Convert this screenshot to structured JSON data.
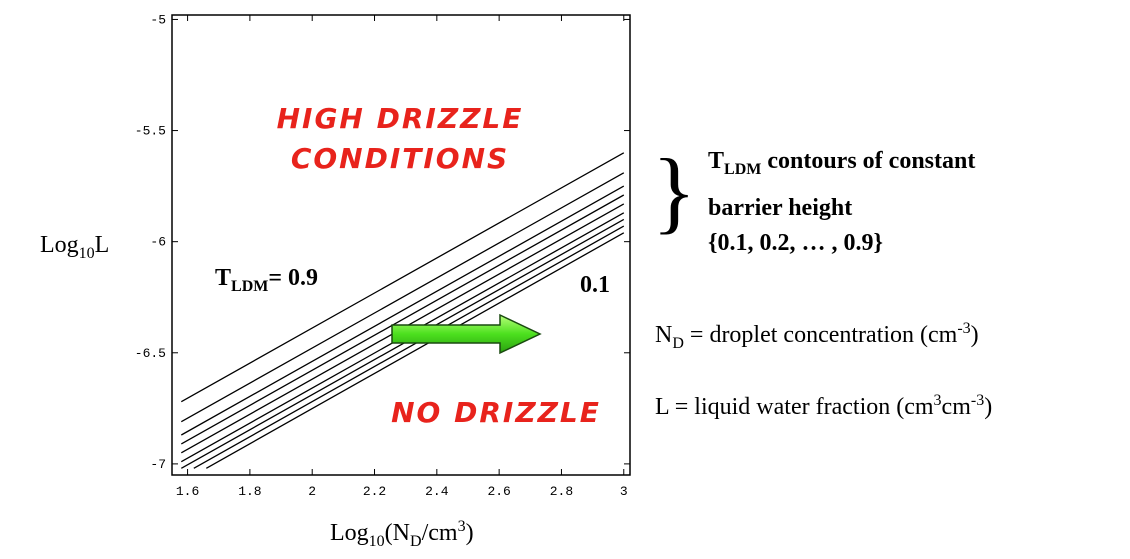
{
  "chart_data": {
    "type": "line",
    "xlabel": [
      "Log",
      "10",
      "(N",
      "D",
      "/cm",
      "3",
      ")"
    ],
    "ylabel": [
      "Log",
      "10",
      "L"
    ],
    "xlim": [
      1.55,
      3.02
    ],
    "ylim": [
      -7.05,
      -4.98
    ],
    "xticks": [
      1.6,
      1.8,
      2,
      2.2,
      2.4,
      2.6,
      2.8,
      3
    ],
    "yticks": [
      -7,
      -6.5,
      -6,
      -5.5,
      -5
    ],
    "line_color": "#000000",
    "series": [
      {
        "x": [
          1.58,
          3.0
        ],
        "values": [
          -6.72,
          -5.6
        ]
      },
      {
        "x": [
          1.58,
          3.0
        ],
        "values": [
          -6.81,
          -5.69
        ]
      },
      {
        "x": [
          1.58,
          3.0
        ],
        "values": [
          -6.87,
          -5.75
        ]
      },
      {
        "x": [
          1.58,
          3.0
        ],
        "values": [
          -6.91,
          -5.79
        ]
      },
      {
        "x": [
          1.58,
          3.0
        ],
        "values": [
          -6.95,
          -5.83
        ]
      },
      {
        "x": [
          1.58,
          3.0
        ],
        "values": [
          -6.99,
          -5.87
        ]
      },
      {
        "x": [
          1.58,
          3.0
        ],
        "values": [
          -7.02,
          -5.9
        ]
      },
      {
        "x": [
          1.62,
          3.0
        ],
        "values": [
          -7.02,
          -5.93
        ]
      },
      {
        "x": [
          1.66,
          3.0
        ],
        "values": [
          -7.02,
          -5.96
        ]
      }
    ],
    "annotations": {
      "high": [
        "HIGH DRIZZLE",
        "CONDITIONS"
      ],
      "low": "NO DRIZZLE",
      "top_label": [
        "T",
        "LDM",
        "= 0.9"
      ],
      "bottom_label": "0.1"
    },
    "notes": {
      "contours": [
        "T",
        "LDM",
        " contours of constant",
        "barrier height",
        "{0.1, 0.2, … , 0.9}"
      ],
      "nd": [
        "N",
        "D",
        " = droplet concentration (cm",
        "-3",
        ")"
      ],
      "l": [
        "L = liquid water fraction (cm",
        "3",
        "cm",
        "-3",
        ")"
      ]
    }
  }
}
